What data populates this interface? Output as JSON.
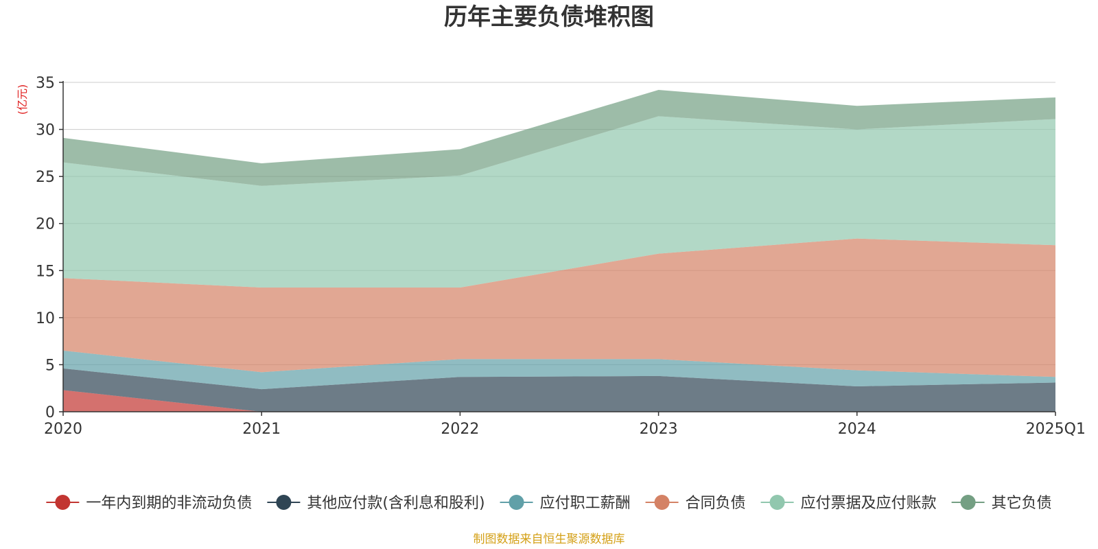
{
  "chart_data": {
    "type": "area",
    "stacked": true,
    "title": "历年主要负债堆积图",
    "ylabel": "(亿元)",
    "xlabel": "",
    "categories": [
      "2020",
      "2021",
      "2022",
      "2023",
      "2024",
      "2025Q1"
    ],
    "ylim": [
      0,
      35
    ],
    "yticks": [
      0,
      5,
      10,
      15,
      20,
      25,
      30,
      35
    ],
    "grid": true,
    "legend_position": "bottom",
    "series": [
      {
        "name": "一年内到期的非流动负债",
        "color": "#c23531",
        "values": [
          2.3,
          0.0,
          0.0,
          0.0,
          0.0,
          0.0
        ]
      },
      {
        "name": "其他应付款(含利息和股利)",
        "color": "#2f4554",
        "values": [
          2.3,
          2.4,
          3.7,
          3.8,
          2.7,
          3.1
        ]
      },
      {
        "name": "应付职工薪酬",
        "color": "#61a0a8",
        "values": [
          1.9,
          1.8,
          1.9,
          1.8,
          1.7,
          0.6
        ]
      },
      {
        "name": "合同负债",
        "color": "#d48265",
        "values": [
          7.7,
          9.0,
          7.6,
          11.2,
          14.0,
          14.0
        ]
      },
      {
        "name": "应付票据及应付账款",
        "color": "#91c7ae",
        "values": [
          12.3,
          10.8,
          11.9,
          14.6,
          11.6,
          13.4
        ]
      },
      {
        "name": "其它负债",
        "color": "#749f83",
        "values": [
          2.6,
          2.4,
          2.8,
          2.8,
          2.5,
          2.3
        ]
      }
    ]
  },
  "footer": {
    "source": "制图数据来自恒生聚源数据库"
  }
}
